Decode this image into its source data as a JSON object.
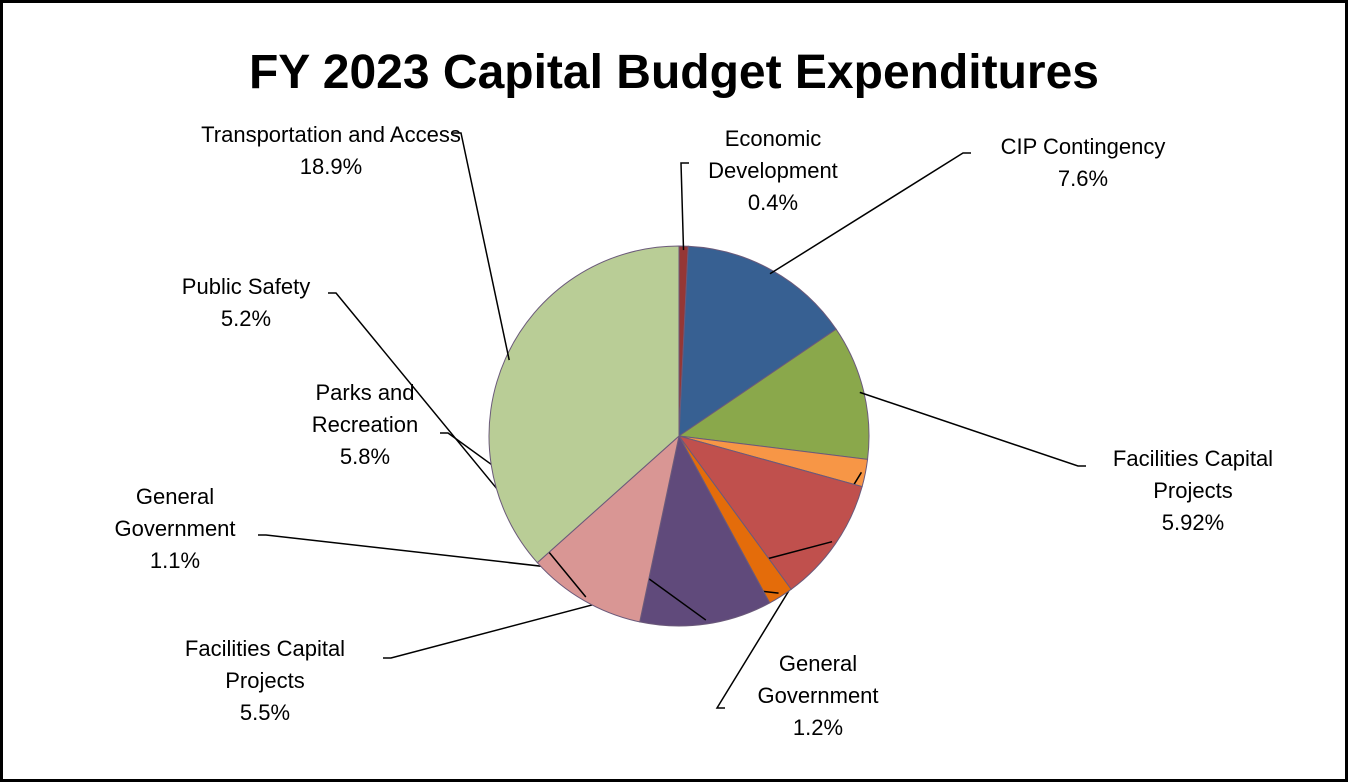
{
  "chart_data": {
    "type": "pie",
    "title": "FY 2023 Capital Budget Expenditures",
    "categories": [
      "Economic Development",
      "CIP Contingency",
      "Facilities Capital Projects",
      "General Government",
      "Facilities Capital Projects",
      "General Government",
      "Parks and Recreation",
      "Public Safety",
      "Transportation and Access"
    ],
    "values": [
      0.4,
      7.6,
      5.92,
      1.2,
      5.5,
      1.1,
      5.8,
      5.2,
      18.9
    ],
    "value_labels": [
      "0.4%",
      "7.6%",
      "5.92%",
      "1.2%",
      "5.5%",
      "1.1%",
      "5.8%",
      "5.2%",
      "18.9%"
    ],
    "colors": [
      "#953735",
      "#376092",
      "#8aa84b",
      "#f79646",
      "#c0504d",
      "#e46c0a",
      "#604a7b",
      "#d99694",
      "#b9cd96"
    ]
  }
}
